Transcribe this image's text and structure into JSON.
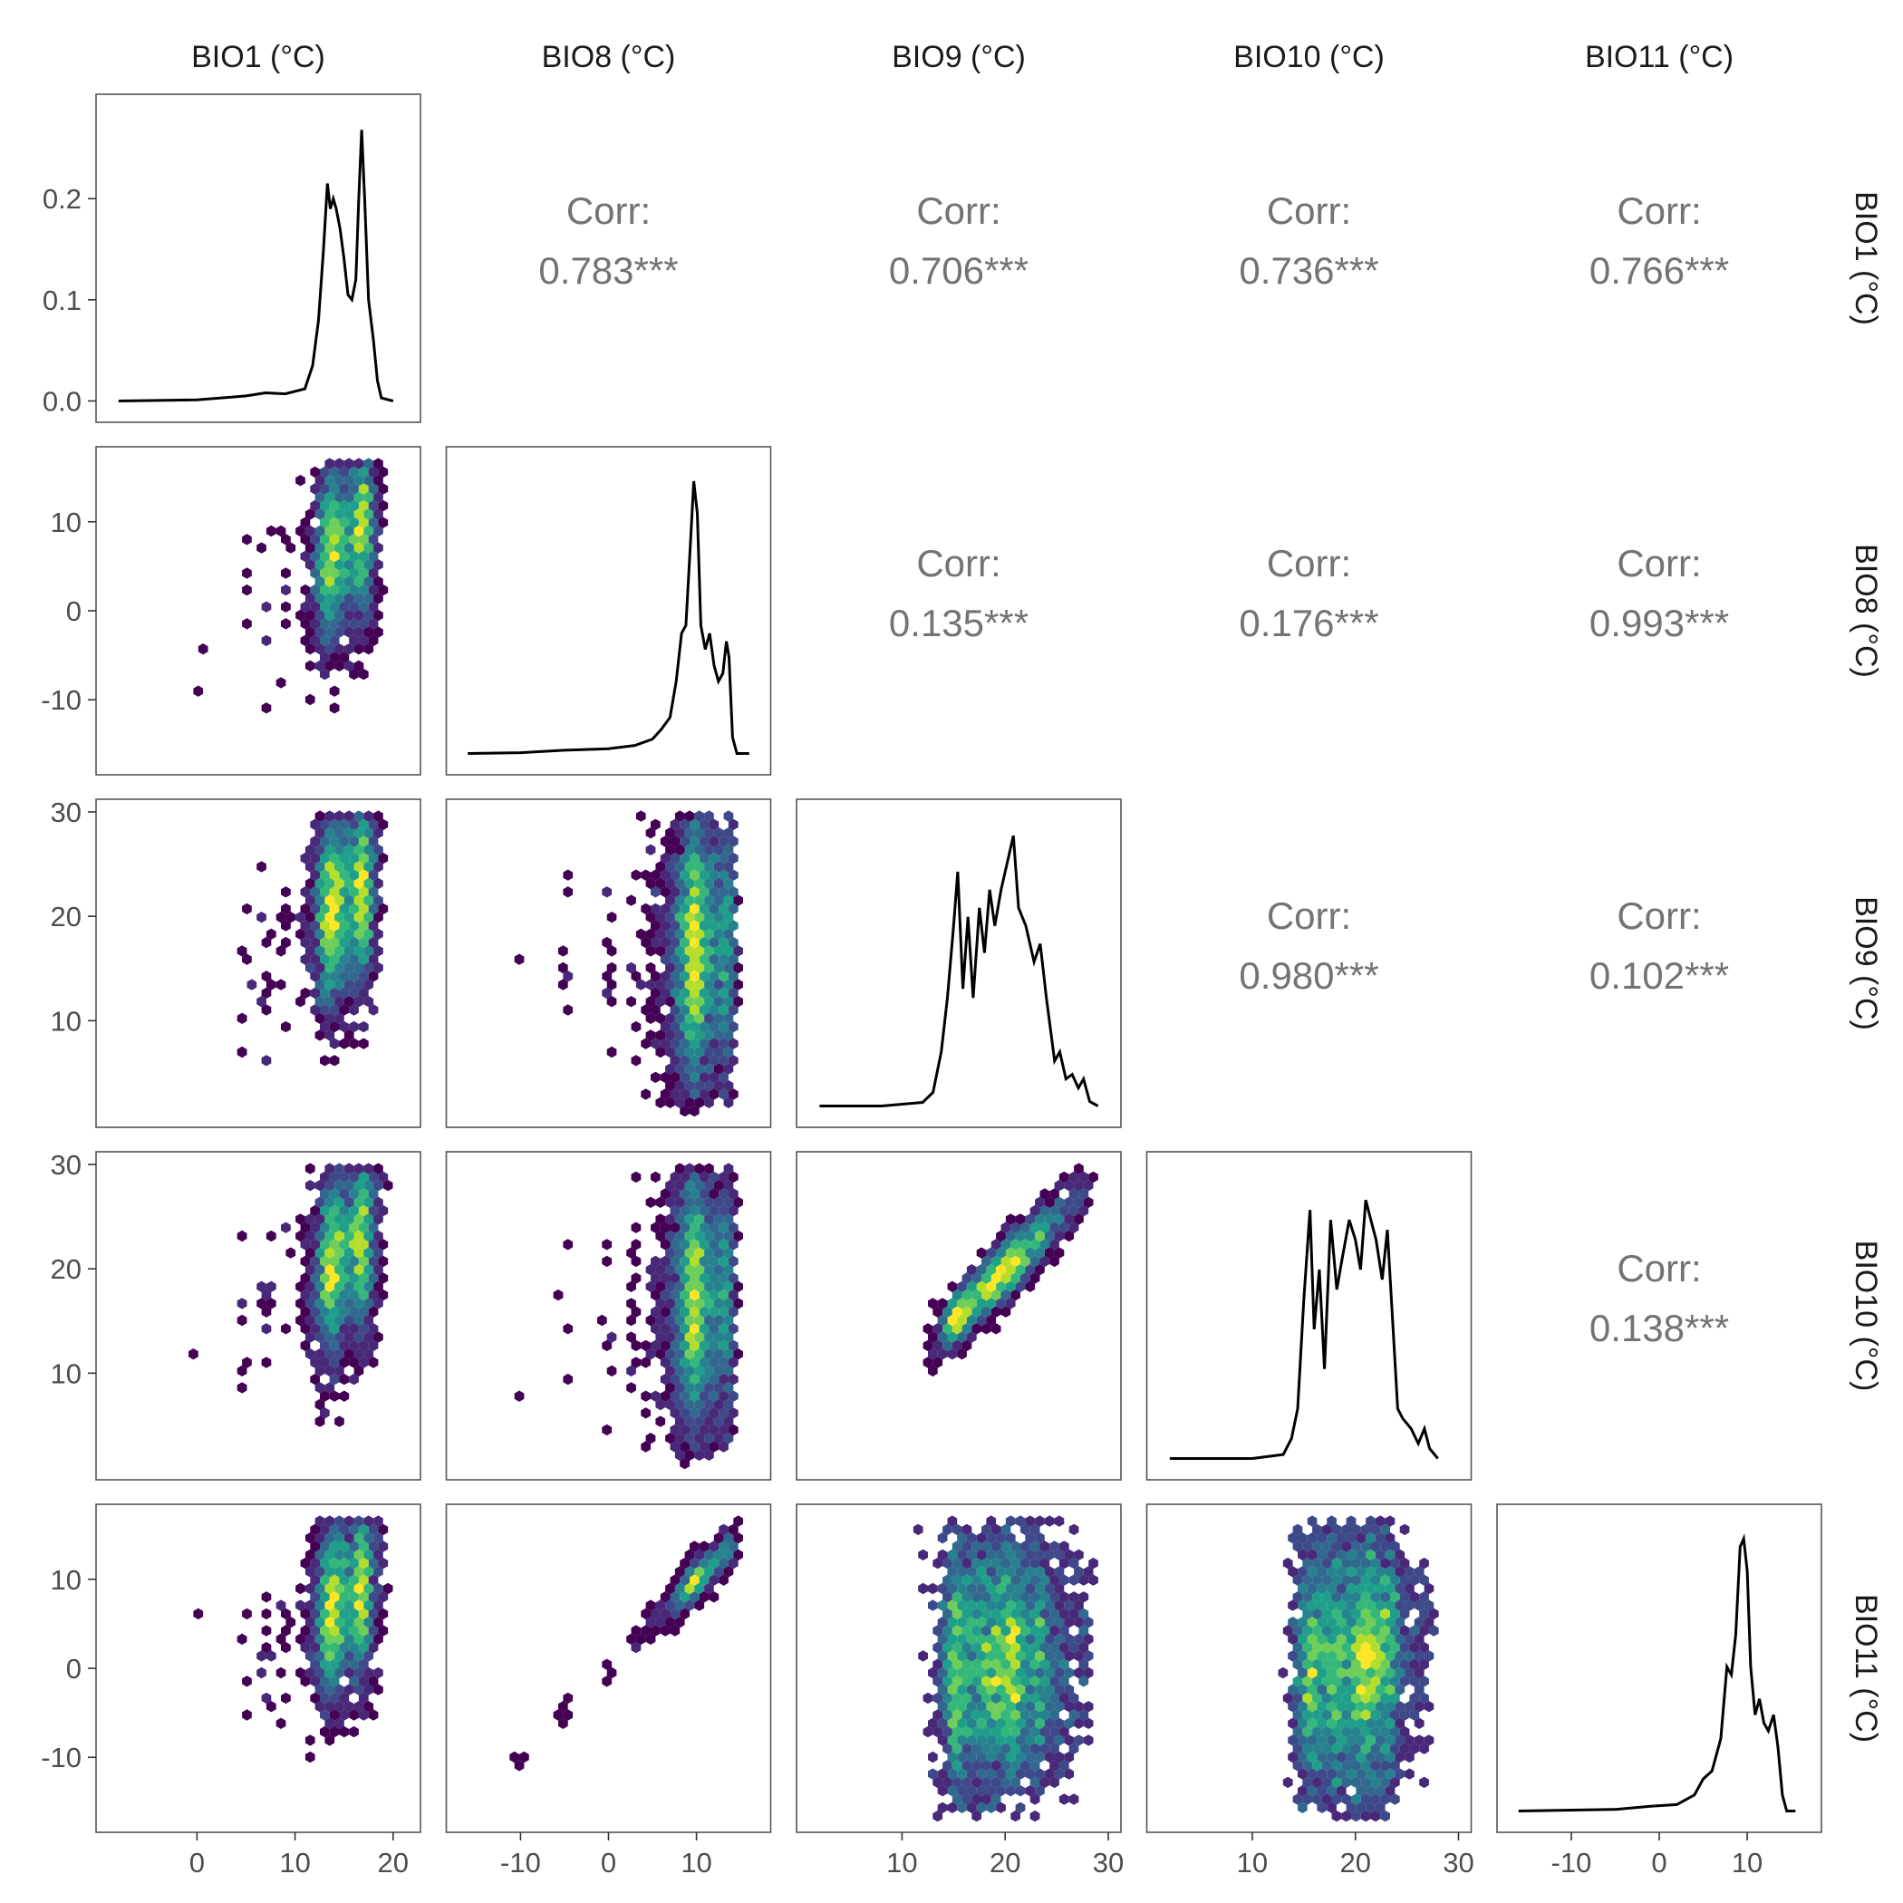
{
  "chart_data": {
    "type": "pair-plot",
    "variables": [
      "BIO1 (°C)",
      "BIO8 (°C)",
      "BIO9 (°C)",
      "BIO10 (°C)",
      "BIO11 (°C)"
    ],
    "ranges": [
      [
        -9,
        21.5
      ],
      [
        -17,
        17
      ],
      [
        1,
        30
      ],
      [
        1,
        30
      ],
      [
        -17,
        17
      ]
    ],
    "x_ticks": [
      [
        0,
        10,
        20
      ],
      [
        -10,
        0,
        10
      ],
      [
        10,
        20,
        30
      ],
      [
        10,
        20,
        30
      ],
      [
        -10,
        0,
        10
      ]
    ],
    "y_ticks": [
      [
        0.0,
        0.1,
        0.2
      ],
      [
        -10,
        0,
        10
      ],
      [
        10,
        20,
        30
      ],
      [
        10,
        20,
        30
      ],
      [
        -10,
        0,
        10
      ]
    ],
    "density_ylim": [
      -0.01,
      0.285
    ],
    "correlation_label": "Corr:",
    "correlations": [
      {
        "row": 0,
        "col": 1,
        "value": "0.783***"
      },
      {
        "row": 0,
        "col": 2,
        "value": "0.706***"
      },
      {
        "row": 0,
        "col": 3,
        "value": "0.736***"
      },
      {
        "row": 0,
        "col": 4,
        "value": "0.766***"
      },
      {
        "row": 1,
        "col": 2,
        "value": "0.135***"
      },
      {
        "row": 1,
        "col": 3,
        "value": "0.176***"
      },
      {
        "row": 1,
        "col": 4,
        "value": "0.993***"
      },
      {
        "row": 2,
        "col": 3,
        "value": "0.980***"
      },
      {
        "row": 2,
        "col": 4,
        "value": "0.102***"
      },
      {
        "row": 3,
        "col": 4,
        "value": "0.138***"
      }
    ],
    "densities": [
      [
        [
          -8,
          0
        ],
        [
          0,
          0.001
        ],
        [
          5,
          0.005
        ],
        [
          7,
          0.008
        ],
        [
          9,
          0.007
        ],
        [
          11,
          0.012
        ],
        [
          11.8,
          0.035
        ],
        [
          12.4,
          0.08
        ],
        [
          12.9,
          0.15
        ],
        [
          13.3,
          0.215
        ],
        [
          13.6,
          0.19
        ],
        [
          13.9,
          0.2
        ],
        [
          14.2,
          0.19
        ],
        [
          14.6,
          0.17
        ],
        [
          15,
          0.14
        ],
        [
          15.4,
          0.105
        ],
        [
          15.8,
          0.1
        ],
        [
          16.2,
          0.12
        ],
        [
          16.5,
          0.2
        ],
        [
          16.8,
          0.268
        ],
        [
          17.1,
          0.2
        ],
        [
          17.5,
          0.1
        ],
        [
          18,
          0.06
        ],
        [
          18.4,
          0.02
        ],
        [
          18.8,
          0.003
        ],
        [
          20,
          0
        ]
      ],
      [
        [
          -16,
          0
        ],
        [
          -10,
          0.001
        ],
        [
          -5,
          0.004
        ],
        [
          0,
          0.006
        ],
        [
          3,
          0.01
        ],
        [
          5,
          0.018
        ],
        [
          6,
          0.03
        ],
        [
          7,
          0.045
        ],
        [
          7.7,
          0.09
        ],
        [
          8.3,
          0.15
        ],
        [
          8.8,
          0.16
        ],
        [
          9.3,
          0.26
        ],
        [
          9.7,
          0.34
        ],
        [
          10.1,
          0.3
        ],
        [
          10.5,
          0.16
        ],
        [
          11,
          0.13
        ],
        [
          11.5,
          0.15
        ],
        [
          12,
          0.11
        ],
        [
          12.5,
          0.09
        ],
        [
          13,
          0.1
        ],
        [
          13.4,
          0.14
        ],
        [
          13.7,
          0.12
        ],
        [
          14.1,
          0.02
        ],
        [
          14.6,
          0
        ],
        [
          16,
          0
        ]
      ],
      [
        [
          2,
          0
        ],
        [
          8,
          0
        ],
        [
          12,
          0.004
        ],
        [
          13,
          0.015
        ],
        [
          13.8,
          0.06
        ],
        [
          14.4,
          0.12
        ],
        [
          15,
          0.2
        ],
        [
          15.4,
          0.26
        ],
        [
          15.9,
          0.13
        ],
        [
          16.4,
          0.21
        ],
        [
          16.9,
          0.12
        ],
        [
          17.5,
          0.22
        ],
        [
          18,
          0.17
        ],
        [
          18.5,
          0.24
        ],
        [
          19,
          0.2
        ],
        [
          19.6,
          0.24
        ],
        [
          20.2,
          0.27
        ],
        [
          20.8,
          0.3
        ],
        [
          21.3,
          0.22
        ],
        [
          22,
          0.2
        ],
        [
          22.8,
          0.16
        ],
        [
          23.4,
          0.18
        ],
        [
          24,
          0.12
        ],
        [
          24.8,
          0.05
        ],
        [
          25.3,
          0.06
        ],
        [
          25.9,
          0.03
        ],
        [
          26.5,
          0.035
        ],
        [
          27.1,
          0.02
        ],
        [
          27.6,
          0.03
        ],
        [
          28.2,
          0.005
        ],
        [
          29,
          0
        ]
      ],
      [
        [
          2,
          0
        ],
        [
          10,
          0
        ],
        [
          13,
          0.004
        ],
        [
          13.8,
          0.02
        ],
        [
          14.4,
          0.05
        ],
        [
          15,
          0.16
        ],
        [
          15.6,
          0.25
        ],
        [
          16,
          0.13
        ],
        [
          16.5,
          0.19
        ],
        [
          17,
          0.09
        ],
        [
          17.6,
          0.24
        ],
        [
          18.2,
          0.17
        ],
        [
          18.7,
          0.2
        ],
        [
          19.4,
          0.24
        ],
        [
          20,
          0.22
        ],
        [
          20.5,
          0.19
        ],
        [
          21,
          0.26
        ],
        [
          21.5,
          0.24
        ],
        [
          22,
          0.22
        ],
        [
          22.6,
          0.18
        ],
        [
          23.1,
          0.23
        ],
        [
          23.6,
          0.14
        ],
        [
          24.1,
          0.05
        ],
        [
          24.6,
          0.04
        ],
        [
          25.4,
          0.03
        ],
        [
          26.1,
          0.015
        ],
        [
          26.7,
          0.03
        ],
        [
          27.2,
          0.01
        ],
        [
          28,
          0
        ]
      ],
      [
        [
          -16,
          0
        ],
        [
          -5,
          0.002
        ],
        [
          -1,
          0.006
        ],
        [
          2,
          0.008
        ],
        [
          4,
          0.02
        ],
        [
          5,
          0.04
        ],
        [
          6,
          0.05
        ],
        [
          7,
          0.09
        ],
        [
          7.7,
          0.18
        ],
        [
          8.2,
          0.17
        ],
        [
          8.7,
          0.22
        ],
        [
          9.2,
          0.33
        ],
        [
          9.6,
          0.34
        ],
        [
          10,
          0.3
        ],
        [
          10.4,
          0.18
        ],
        [
          10.9,
          0.12
        ],
        [
          11.4,
          0.14
        ],
        [
          11.9,
          0.11
        ],
        [
          12.4,
          0.1
        ],
        [
          13,
          0.12
        ],
        [
          13.5,
          0.08
        ],
        [
          14,
          0.02
        ],
        [
          14.5,
          0
        ],
        [
          15.5,
          0
        ]
      ]
    ],
    "densities_ymax": [
      0.285,
      0.36,
      0.32,
      0.29,
      0.36
    ],
    "hexbin_colormap": [
      "#440154",
      "#482878",
      "#3e4989",
      "#31688e",
      "#26828e",
      "#1f9e89",
      "#35b779",
      "#6ece58",
      "#b5de2b",
      "#fde725"
    ]
  }
}
